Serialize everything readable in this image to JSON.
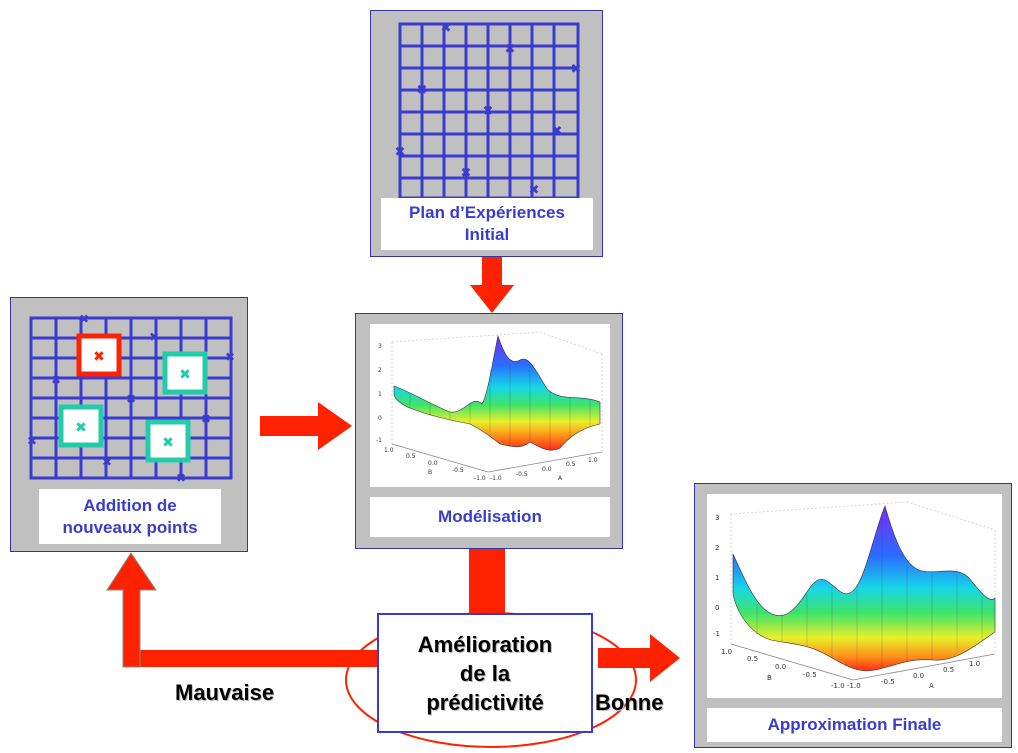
{
  "nodes": {
    "initial_plan": "Plan d’Expériences\nInitial",
    "modelisation": "Modélisation",
    "addition": "Addition de\nnouveaux points",
    "amelioration": "Amélioration\nde la\nprédictivité",
    "approximation": "Approximation Finale"
  },
  "edges": {
    "bad": "Mauvaise",
    "good": "Bonne"
  },
  "surface_axes": {
    "z_ticks": [
      "3",
      "2",
      "1",
      "0",
      "-1"
    ],
    "b_ticks": [
      "1.0",
      "0.5",
      "0.0",
      "-0.5",
      "-1.0"
    ],
    "a_ticks": [
      "-1.0",
      "-0.5",
      "0.0",
      "0.5",
      "1.0"
    ],
    "b_label": "B",
    "a_label": "A"
  },
  "colors": {
    "arrow": "#ff2200",
    "grid": "#3b3bd0",
    "caption_text": "#3b3bd0",
    "panel": "#c0c0c0",
    "new_point_red": "#ff2200",
    "new_point_teal": "#22ccaa"
  }
}
